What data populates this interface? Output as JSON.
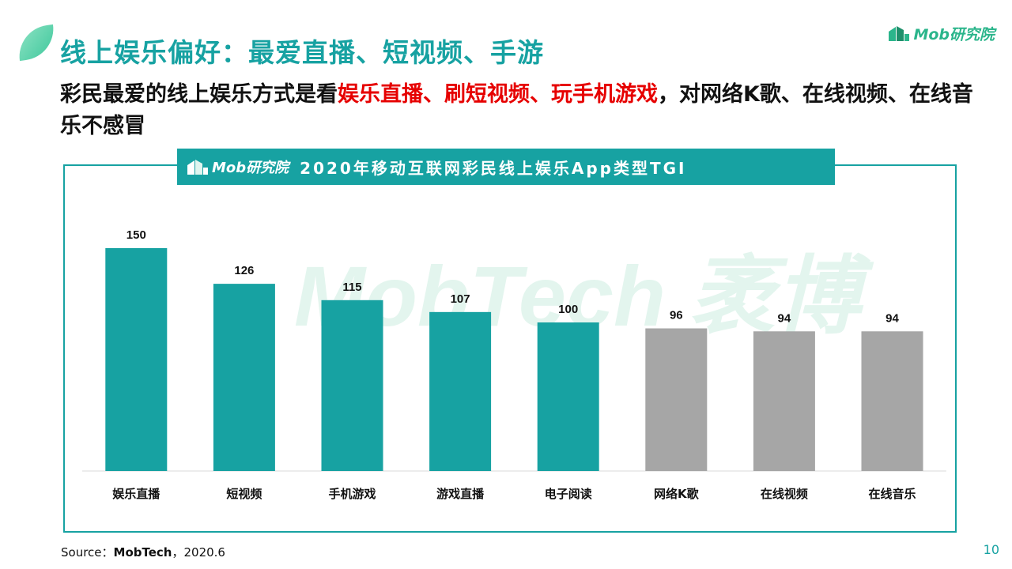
{
  "header": {
    "title": "线上娱乐偏好：最爱直播、短视频、手游",
    "brand": "Mob研究院"
  },
  "subtitle": {
    "part1": "彩民最爱的线上娱乐方式是看",
    "highlight": "娱乐直播、刷短视频、玩手机游戏",
    "part2": "，对网络K歌、在线视频、在线音乐不感冒"
  },
  "chart_banner": {
    "logo": "Mob研究院",
    "title": "2020年移动互联网彩民线上娱乐App类型TGI"
  },
  "watermark": "MobTech 袤博",
  "chart_data": {
    "type": "bar",
    "title": "2020年移动互联网彩民线上娱乐App类型TGI",
    "categories": [
      "娱乐直播",
      "短视频",
      "手机游戏",
      "游戏直播",
      "电子阅读",
      "网络K歌",
      "在线视频",
      "在线音乐"
    ],
    "values": [
      150,
      126,
      115,
      107,
      100,
      96,
      94,
      94
    ],
    "data_labels": [
      "150",
      "126",
      "115",
      "107",
      "100",
      "96",
      "94",
      "94"
    ],
    "bar_colors": [
      "#17a2a2",
      "#17a2a2",
      "#17a2a2",
      "#17a2a2",
      "#17a2a2",
      "#a6a6a6",
      "#a6a6a6",
      "#a6a6a6"
    ],
    "ylim": [
      0,
      175
    ],
    "grid": false,
    "legend": "none"
  },
  "footer": {
    "source_prefix": "Source：",
    "source_name": "MobTech",
    "source_suffix": "，2020.6",
    "page_number": "10"
  },
  "colors": {
    "accent": "#17a2a2",
    "highlight": "#e60000",
    "muted_bar": "#a6a6a6",
    "brand_green": "#2bb58b"
  }
}
